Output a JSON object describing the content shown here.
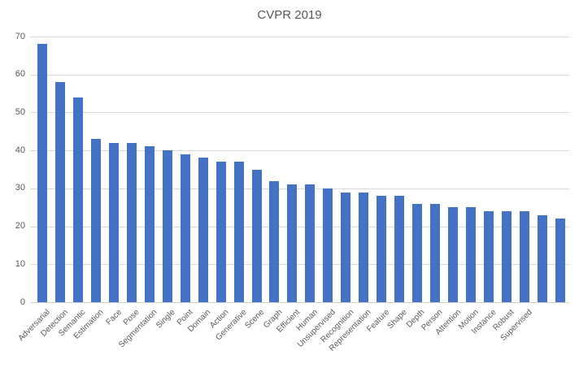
{
  "title": "CVPR 2019",
  "colors": {
    "bar": "#4472C4",
    "title_text": "#595959",
    "axis_text": "#595959",
    "gridline": "#D9D9D9",
    "background": "#FFFFFF"
  },
  "chart_data": {
    "type": "bar",
    "title": "CVPR 2019",
    "categories": [
      "Adversarial",
      "Detection",
      "Semantic",
      "Estimation",
      "Face",
      "Pose",
      "Segmentation",
      "Single",
      "Point",
      "Domain",
      "Action",
      "Generative",
      "Scene",
      "Graph",
      "Efficient",
      "Human",
      "Unsupervised",
      "Recognition",
      "Representation",
      "Feature",
      "Shape",
      "Depth",
      "Person",
      "Attention",
      "Motion",
      "Instance",
      "Robust",
      "Supervised",
      "",
      ""
    ],
    "values": [
      68,
      58,
      54,
      43,
      42,
      42,
      41,
      40,
      39,
      38,
      37,
      37,
      35,
      32,
      31,
      31,
      30,
      29,
      29,
      28,
      28,
      26,
      26,
      25,
      25,
      24,
      24,
      24,
      23,
      22
    ],
    "xlabel": "",
    "ylabel": "",
    "ylim": [
      0,
      70
    ],
    "yticks": [
      0,
      10,
      20,
      30,
      40,
      50,
      60,
      70
    ],
    "grid": "horizontal",
    "legend_position": "none",
    "x_tick_rotation_deg": 45
  }
}
